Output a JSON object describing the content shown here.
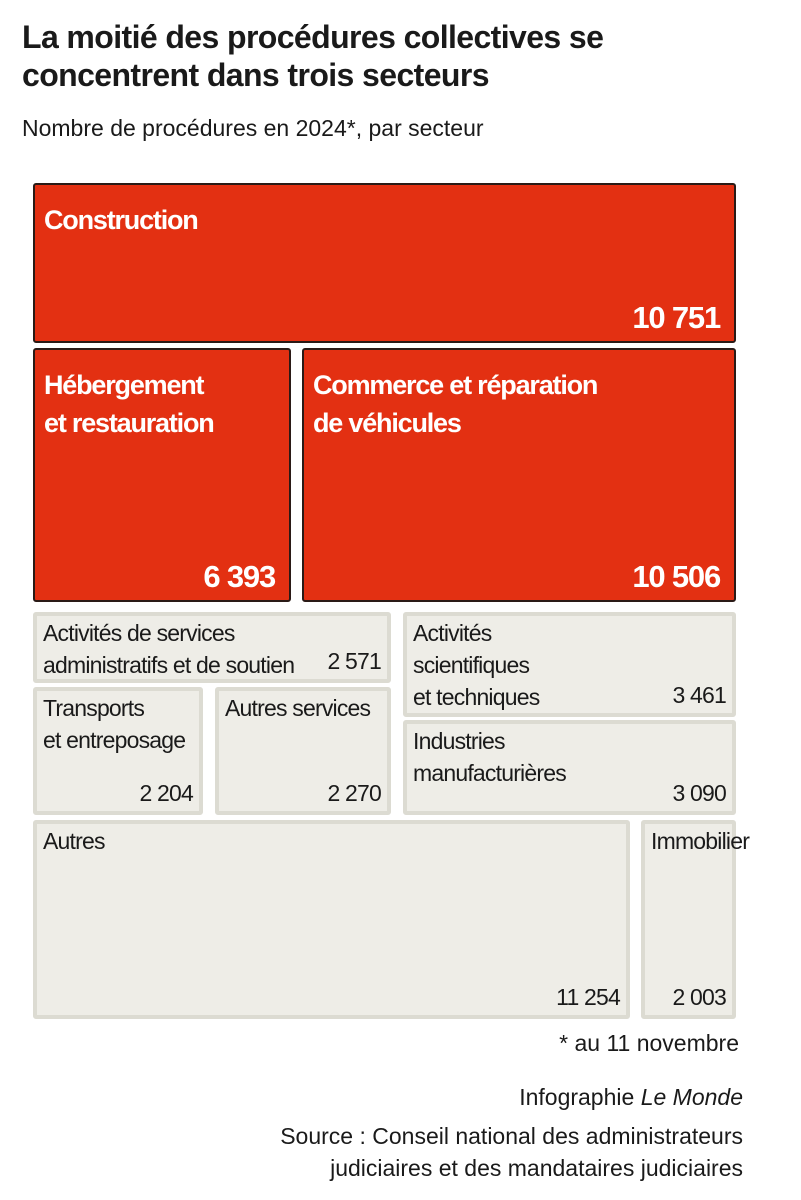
{
  "header": {
    "title": "La moitié des procédures collectives se concentrent dans trois secteurs",
    "subtitle": "Nombre de procédures en 2024*, par secteur"
  },
  "chart_data": {
    "type": "treemap",
    "title": "La moitié des procédures collectives se concentrent dans trois secteurs",
    "subtitle": "Nombre de procédures en 2024*, par secteur",
    "unit": "procédures",
    "highlight_color": "#e33012",
    "neutral_color": "#eeede7",
    "items": [
      {
        "name": "Construction",
        "label_lines": [
          "Construction"
        ],
        "value": 10751,
        "value_label": "10 751",
        "highlight": true
      },
      {
        "name": "Hébergement et restauration",
        "label_lines": [
          "Hébergement",
          "et restauration"
        ],
        "value": 6393,
        "value_label": "6 393",
        "highlight": true
      },
      {
        "name": "Commerce et réparation de véhicules",
        "label_lines": [
          "Commerce et réparation",
          "de véhicules"
        ],
        "value": 10506,
        "value_label": "10 506",
        "highlight": true
      },
      {
        "name": "Activités de services administratifs et de soutien",
        "label_lines": [
          "Activités de services",
          "administratifs et de soutien"
        ],
        "value": 2571,
        "value_label": "2 571",
        "highlight": false
      },
      {
        "name": "Activités scientifiques et techniques",
        "label_lines": [
          "Activités",
          "scientifiques",
          "et techniques"
        ],
        "value": 3461,
        "value_label": "3 461",
        "highlight": false
      },
      {
        "name": "Transports et entreposage",
        "label_lines": [
          "Transports",
          "et entreposage"
        ],
        "value": 2204,
        "value_label": "2 204",
        "highlight": false
      },
      {
        "name": "Autres services",
        "label_lines": [
          "Autres services"
        ],
        "value": 2270,
        "value_label": "2 270",
        "highlight": false
      },
      {
        "name": "Industries manufacturières",
        "label_lines": [
          "Industries",
          "manufacturières"
        ],
        "value": 3090,
        "value_label": "3 090",
        "highlight": false
      },
      {
        "name": "Autres",
        "label_lines": [
          "Autres"
        ],
        "value": 11254,
        "value_label": "11 254",
        "highlight": false
      },
      {
        "name": "Immobilier",
        "label_lines": [
          "Immobilier"
        ],
        "value": 2003,
        "value_label": "2 003",
        "highlight": false
      }
    ]
  },
  "footer": {
    "footnote": "* au 11 novembre",
    "credit_prefix": "Infographie",
    "credit_brand": "Le Monde",
    "source_line1": "Source : Conseil national des administrateurs",
    "source_line2": "judiciaires et des mandataires judiciaires"
  }
}
